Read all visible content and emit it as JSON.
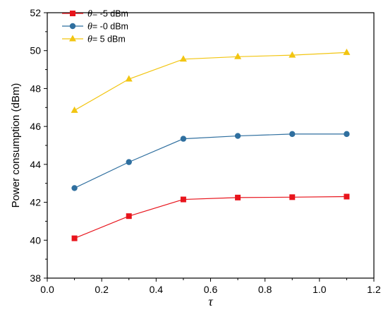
{
  "chart_data": {
    "type": "line",
    "xlabel": "τ",
    "ylabel": "Power consumption (dBm)",
    "xlim": [
      0.0,
      1.2
    ],
    "ylim": [
      38,
      52
    ],
    "xticks": [
      "0.0",
      "0.2",
      "0.4",
      "0.6",
      "0.8",
      "1.0",
      "1.2"
    ],
    "yticks": [
      "38",
      "40",
      "42",
      "44",
      "46",
      "48",
      "50",
      "52"
    ],
    "grid": false,
    "legend_position": "top-left",
    "x": [
      0.1,
      0.3,
      0.5,
      0.7,
      0.9,
      1.1
    ],
    "series": [
      {
        "name_symbol": "θ",
        "name_text": "= -5 dBm",
        "color": "#e8141c",
        "marker": "square",
        "values": [
          40.1,
          41.27,
          42.15,
          42.25,
          42.27,
          42.3
        ]
      },
      {
        "name_symbol": "θ",
        "name_text": "= -0 dBm",
        "color": "#2f6f9f",
        "marker": "circle",
        "values": [
          42.75,
          44.12,
          45.35,
          45.5,
          45.6,
          45.6
        ]
      },
      {
        "name_symbol": "θ",
        "name_text": "=  5 dBm",
        "color": "#f2c511",
        "marker": "triangle",
        "values": [
          46.85,
          48.5,
          49.55,
          49.68,
          49.76,
          49.9
        ]
      }
    ]
  }
}
